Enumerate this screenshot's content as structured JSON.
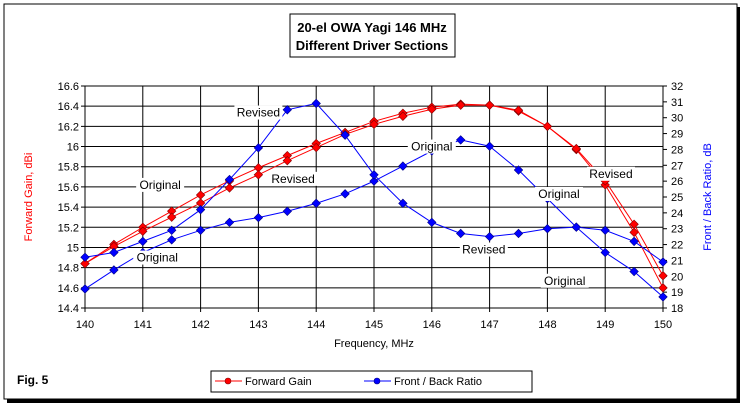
{
  "chart_data": {
    "type": "line",
    "title": [
      "20-el OWA Yagi 146 MHz",
      "Different Driver Sections"
    ],
    "figure_label": "Fig. 5",
    "xlabel": "Frequency, MHz",
    "ylabel_left": "Forward Gain, dBi",
    "ylabel_right": "Front / Back Ratio, dB",
    "xlim": [
      140,
      150
    ],
    "ylim_left": [
      14.4,
      16.6
    ],
    "ylim_right": [
      18,
      32
    ],
    "x_ticks": [
      "140",
      "141",
      "142",
      "143",
      "144",
      "145",
      "146",
      "147",
      "148",
      "149",
      "150"
    ],
    "y_left_ticks": [
      "16.6",
      "16.4",
      "16.2",
      "16",
      "15.8",
      "15.6",
      "15.4",
      "15.2",
      "15",
      "14.8",
      "14.6",
      "14.4"
    ],
    "y_right_ticks": [
      "32",
      "31",
      "30",
      "29",
      "28",
      "27",
      "26",
      "25",
      "24",
      "23",
      "22",
      "21",
      "20",
      "19",
      "18"
    ],
    "grid": true,
    "legend_position": "bottom",
    "legend": [
      "Forward Gain",
      "Front / Back Ratio"
    ],
    "colors": {
      "gain": "#ff0000",
      "fb": "#0000ff"
    },
    "x": [
      140,
      140.5,
      141,
      141.5,
      142,
      142.5,
      143,
      143.5,
      144,
      144.5,
      145,
      145.5,
      146,
      146.5,
      147,
      147.5,
      148,
      148.5,
      149,
      149.5,
      150
    ],
    "series": [
      {
        "name": "Forward Gain - Original",
        "axis": "left",
        "color": "#ff0000",
        "values": [
          14.84,
          15.03,
          15.2,
          15.36,
          15.52,
          15.66,
          15.79,
          15.91,
          16.03,
          16.14,
          16.25,
          16.33,
          16.39,
          16.42,
          16.41,
          16.35,
          16.2,
          15.97,
          15.62,
          15.15,
          14.6
        ]
      },
      {
        "name": "Forward Gain - Revised",
        "axis": "left",
        "color": "#ff0000",
        "values": [
          14.84,
          15.01,
          15.16,
          15.3,
          15.44,
          15.59,
          15.72,
          15.86,
          15.99,
          16.12,
          16.22,
          16.3,
          16.37,
          16.41,
          16.41,
          16.36,
          16.2,
          15.98,
          15.66,
          15.23,
          14.72
        ]
      },
      {
        "name": "Front / Back Ratio - Original",
        "axis": "right",
        "color": "#0000ff",
        "values": [
          19.2,
          20.4,
          21.5,
          22.3,
          22.9,
          23.4,
          23.7,
          24.1,
          24.6,
          25.2,
          26.0,
          26.95,
          27.9,
          28.6,
          28.2,
          26.7,
          24.9,
          23.1,
          21.5,
          20.3,
          18.7
        ]
      },
      {
        "name": "Front / Back Ratio - Revised",
        "axis": "right",
        "color": "#0000ff",
        "values": [
          21.2,
          21.5,
          22.2,
          22.9,
          24.2,
          26.1,
          28.1,
          30.5,
          30.9,
          28.9,
          26.4,
          24.6,
          23.4,
          22.7,
          22.5,
          22.7,
          23.0,
          23.1,
          22.9,
          22.2,
          20.9
        ]
      }
    ],
    "annotations": [
      {
        "text": "Revised",
        "x": 143.0,
        "y_right": 30.2
      },
      {
        "text": "Original",
        "x": 141.3,
        "y_left": 15.6
      },
      {
        "text": "Revised",
        "x": 143.6,
        "y_left": 15.66
      },
      {
        "text": "Original",
        "x": 141.25,
        "y_left": 14.88
      },
      {
        "text": "Original",
        "x": 146.0,
        "y_left": 15.98
      },
      {
        "text": "Revised",
        "x": 149.1,
        "y_left": 15.71
      },
      {
        "text": "Original",
        "x": 148.2,
        "y_left": 15.51
      },
      {
        "text": "Revised",
        "x": 146.9,
        "y_left": 14.96
      },
      {
        "text": "Original",
        "x": 148.3,
        "y_left": 14.65
      }
    ]
  }
}
